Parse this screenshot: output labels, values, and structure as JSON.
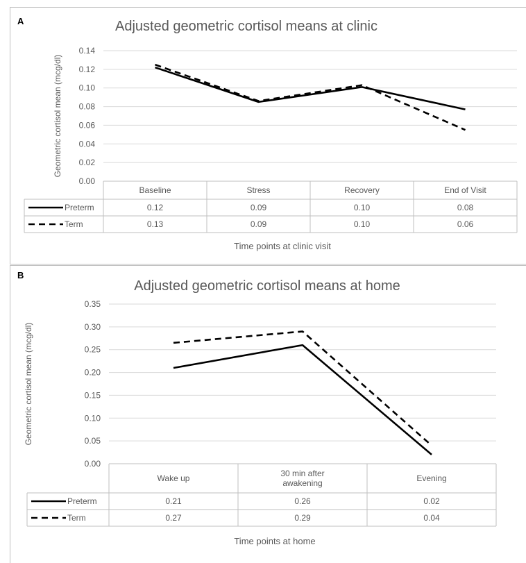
{
  "chart_data": [
    {
      "panel": "A",
      "type": "line",
      "title": "Adjusted geometric cortisol means at clinic",
      "ylabel": "Geometric cortisol mean (mcg/dl)",
      "xlabel": "Time points at clinic visit",
      "ylim": [
        0,
        0.14
      ],
      "yticks": [
        "0.00",
        "0.02",
        "0.04",
        "0.06",
        "0.08",
        "0.10",
        "0.12",
        "0.14"
      ],
      "categories": [
        "Baseline",
        "Stress",
        "Recovery",
        "End of Visit"
      ],
      "series": [
        {
          "name": "Preterm",
          "style": "solid",
          "values": [
            0.122,
            0.085,
            0.101,
            0.077
          ],
          "labels": [
            "0.12",
            "0.09",
            "0.10",
            "0.08"
          ]
        },
        {
          "name": "Term",
          "style": "dashed",
          "values": [
            0.125,
            0.086,
            0.103,
            0.055
          ],
          "labels": [
            "0.13",
            "0.09",
            "0.10",
            "0.06"
          ]
        }
      ],
      "grid": true,
      "data_table": true
    },
    {
      "panel": "B",
      "type": "line",
      "title": "Adjusted geometric cortisol means at home",
      "ylabel": "Geometric cortisol mean (mcg/dl)",
      "xlabel": "Time points at home",
      "ylim": [
        0,
        0.35
      ],
      "yticks": [
        "0.00",
        "0.05",
        "0.10",
        "0.15",
        "0.20",
        "0.25",
        "0.30",
        "0.35"
      ],
      "categories": [
        "Wake up",
        "30 min after\nawakening",
        "Evening"
      ],
      "series": [
        {
          "name": "Preterm",
          "style": "solid",
          "values": [
            0.21,
            0.26,
            0.02
          ],
          "labels": [
            "0.21",
            "0.26",
            "0.02"
          ]
        },
        {
          "name": "Term",
          "style": "dashed",
          "values": [
            0.265,
            0.29,
            0.04
          ],
          "labels": [
            "0.27",
            "0.29",
            "0.04"
          ]
        }
      ],
      "grid": true,
      "data_table": true
    }
  ]
}
